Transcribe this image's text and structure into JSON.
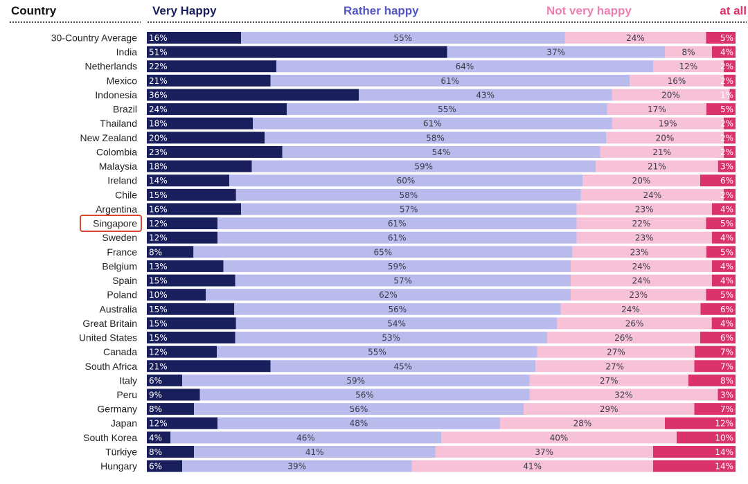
{
  "chart_data": {
    "type": "bar",
    "orientation": "horizontal",
    "stacked": true,
    "row_header": "Country",
    "series_headers": [
      "Very Happy",
      "Rather happy",
      "Not very happy",
      "at all"
    ],
    "colors": {
      "very_happy": "#191e5c",
      "rather_happy": "#babbed",
      "not_very_happy": "#f7c2d8",
      "not_at_all": "#d9336a",
      "highlight_box": "#d9462e"
    },
    "highlighted_category": "Singapore",
    "categories": [
      "30-Country Average",
      "India",
      "Netherlands",
      "Mexico",
      "Indonesia",
      "Brazil",
      "Thailand",
      "New Zealand",
      "Colombia",
      "Malaysia",
      "Ireland",
      "Chile",
      "Argentina",
      "Singapore",
      "Sweden",
      "France",
      "Belgium",
      "Spain",
      "Poland",
      "Australia",
      "Great Britain",
      "United States",
      "Canada",
      "South Africa",
      "Italy",
      "Peru",
      "Germany",
      "Japan",
      "South Korea",
      "Türkiye",
      "Hungary"
    ],
    "series": [
      {
        "name": "Very Happy",
        "values": [
          16,
          51,
          22,
          21,
          36,
          24,
          18,
          20,
          23,
          18,
          14,
          15,
          16,
          12,
          12,
          8,
          13,
          15,
          10,
          15,
          15,
          15,
          12,
          21,
          6,
          9,
          8,
          12,
          4,
          8,
          6
        ],
        "labels": [
          "16%",
          "51%",
          "22%",
          "21%",
          "36%",
          "24%",
          "18%",
          "20%",
          "23%",
          "18%",
          "14%",
          "15%",
          "16%",
          "12%",
          "12%",
          "8%",
          "13%",
          "15%",
          "10%",
          "15%",
          "15%",
          "15%",
          "12%",
          "21%",
          "6%",
          "9%",
          "8%",
          "12%",
          "4%",
          "8%",
          "6%"
        ]
      },
      {
        "name": "Rather happy",
        "values": [
          55,
          37,
          64,
          61,
          43,
          55,
          61,
          58,
          54,
          59,
          60,
          58,
          57,
          61,
          61,
          65,
          59,
          57,
          62,
          56,
          54,
          53,
          55,
          45,
          59,
          56,
          56,
          48,
          46,
          41,
          39
        ],
        "labels": [
          "55%",
          "37%",
          "64%",
          "61%",
          "43%",
          "55%",
          "61%",
          "58%",
          "54%",
          "59%",
          "60%",
          "58%",
          "57%",
          "61%",
          "61%",
          "65%",
          "59%",
          "57%",
          "62%",
          "56%",
          "54%",
          "53%",
          "55%",
          "45%",
          "59%",
          "56%",
          "56%",
          "48%",
          "46%",
          "41%",
          "39%"
        ]
      },
      {
        "name": "Not very happy",
        "values": [
          24,
          8,
          12,
          16,
          20,
          17,
          19,
          20,
          21,
          21,
          20,
          24,
          23,
          22,
          23,
          23,
          24,
          24,
          23,
          24,
          26,
          26,
          27,
          27,
          27,
          32,
          29,
          28,
          40,
          37,
          41
        ],
        "labels": [
          "24%",
          "8%",
          "12%",
          "16%",
          "20%",
          "17%",
          "19%",
          "20%",
          "21%",
          "21%",
          "20%",
          "24%",
          "23%",
          "22%",
          "23%",
          "23%",
          "24%",
          "24%",
          "23%",
          "24%",
          "26%",
          "26%",
          "27%",
          "27%",
          "27%",
          "32%",
          "29%",
          "28%",
          "40%",
          "37%",
          "41%"
        ]
      },
      {
        "name": "at all",
        "values": [
          5,
          4,
          2,
          2,
          1,
          5,
          2,
          2,
          2,
          3,
          6,
          2,
          4,
          5,
          4,
          5,
          4,
          4,
          5,
          6,
          4,
          6,
          7,
          7,
          8,
          3,
          7,
          12,
          10,
          14,
          14
        ],
        "labels": [
          "5%",
          "4%",
          "2%",
          "2%",
          "1%",
          "5%",
          "2%",
          "2%",
          "2%",
          "3%",
          "6%",
          "2%",
          "4%",
          "5%",
          "4%",
          "5%",
          "4%",
          "4%",
          "5%",
          "6%",
          "4%",
          "6%",
          "7%",
          "7%",
          "8%",
          "3%",
          "7%",
          "12%",
          "10%",
          "14%",
          "14%"
        ]
      }
    ]
  }
}
